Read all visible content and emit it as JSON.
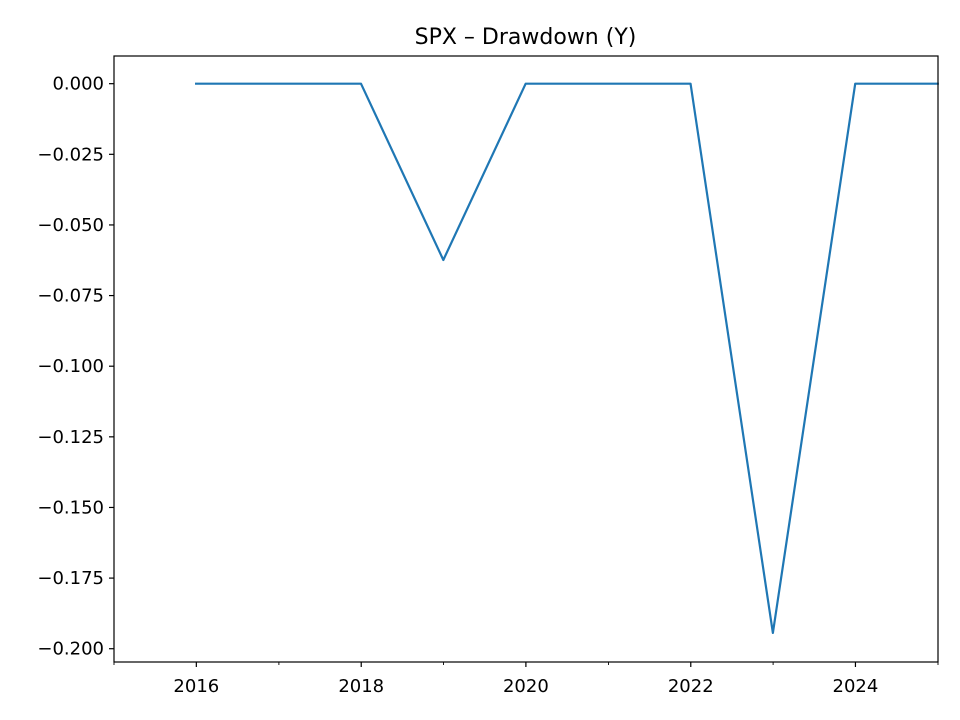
{
  "chart_data": {
    "type": "line",
    "title": "SPX – Drawdown (Y)",
    "xlabel": "",
    "ylabel": "",
    "x": [
      "2015-12-31",
      "2016-12-31",
      "2017-12-31",
      "2018-12-31",
      "2019-12-31",
      "2020-12-31",
      "2021-12-31",
      "2022-12-31",
      "2023-12-31",
      "2024-12-31"
    ],
    "series": [
      {
        "values": [
          0.0,
          0.0,
          0.0,
          -0.0624,
          0.0,
          0.0,
          0.0,
          -0.1944,
          0.0,
          0.0
        ],
        "color": "#1f77b4"
      }
    ],
    "xlim": [
      "2015",
      "2025"
    ],
    "ylim": [
      -0.2047,
      0.0098
    ],
    "x_major_ticks": [
      "2016",
      "2018",
      "2020",
      "2022",
      "2024"
    ],
    "x_minor_ticks": [
      "2015",
      "2017",
      "2019",
      "2021",
      "2023",
      "2025"
    ],
    "y_ticks": [
      "0.000",
      "−0.025",
      "−0.050",
      "−0.075",
      "−0.100",
      "−0.125",
      "−0.150",
      "−0.175",
      "−0.200"
    ],
    "y_tick_values": [
      0.0,
      -0.025,
      -0.05,
      -0.075,
      -0.1,
      -0.125,
      -0.15,
      -0.175,
      -0.2
    ],
    "grid": false,
    "legend": "none"
  }
}
